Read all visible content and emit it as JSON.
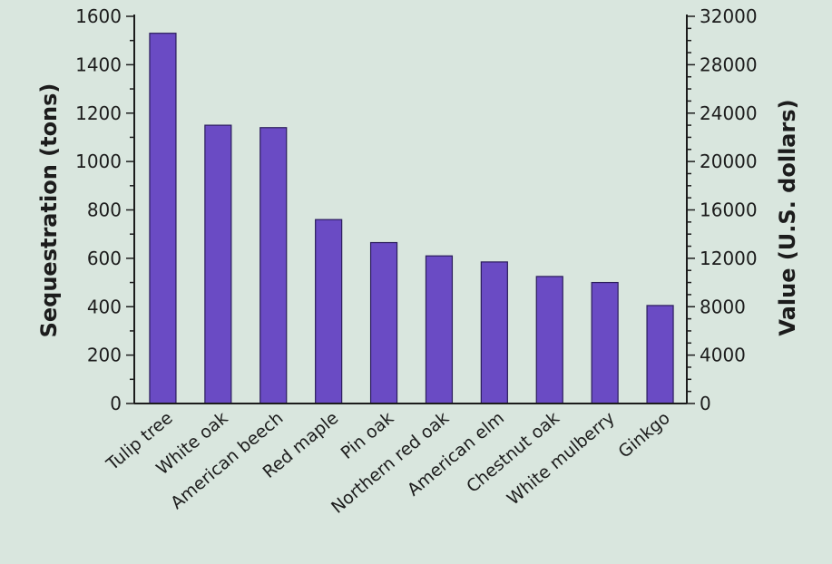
{
  "chart_data": {
    "type": "bar",
    "title": "",
    "categories": [
      "Tulip tree",
      "White oak",
      "American beech",
      "Red maple",
      "Pin oak",
      "Northern red oak",
      "American elm",
      "Chestnut oak",
      "White mulberry",
      "Ginkgo"
    ],
    "series": [
      {
        "values": [
          1530,
          1150,
          1140,
          760,
          665,
          610,
          585,
          525,
          500,
          405
        ]
      }
    ],
    "ylabel": "Sequestration (tons)",
    "ylim": [
      0,
      1600
    ],
    "yticks": [
      0,
      200,
      400,
      600,
      800,
      1000,
      1200,
      1400,
      1600
    ],
    "y2label": "Value (U.S. dollars)",
    "y2lim": [
      0,
      32000
    ],
    "y2ticks": [
      0,
      4000,
      8000,
      12000,
      16000,
      20000,
      24000,
      28000,
      32000
    ],
    "grid": false,
    "colors": {
      "bar": "#6a4bc4",
      "bar_edge": "#2b1d5c",
      "axis": "#1c1c1c",
      "background": "#d9e6de"
    }
  }
}
